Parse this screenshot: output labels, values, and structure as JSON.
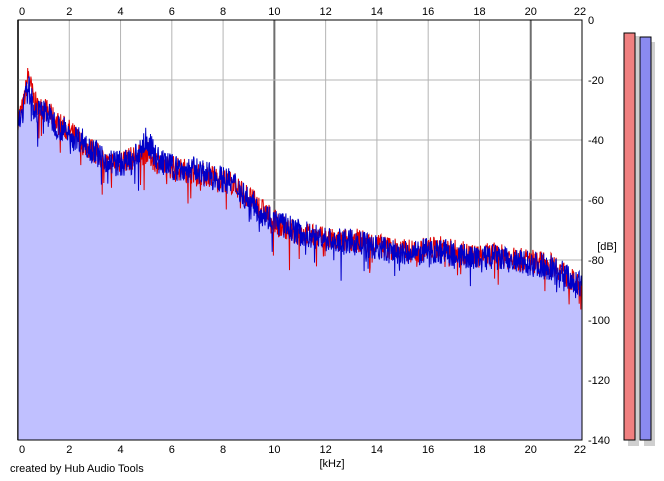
{
  "footer": {
    "credit": "created by Hub Audio Tools"
  },
  "colors": {
    "left_channel": "#e00000",
    "right_channel": "#0000c8",
    "area_fill": "#c0c0ff",
    "grid": "#b4b4b4",
    "grid_major": "#6e6e6e",
    "meter_left": "#f08080",
    "meter_right": "#8a8af0"
  },
  "chart_data": {
    "type": "line",
    "title": "",
    "xlabel": "[kHz]",
    "ylabel": "[dB]",
    "xlim": [
      0,
      22
    ],
    "ylim": [
      -140,
      0
    ],
    "x_ticks": [
      0,
      2,
      4,
      6,
      8,
      10,
      12,
      14,
      16,
      18,
      20,
      22
    ],
    "x_tick_labels": [
      "0",
      "2",
      "4",
      "6",
      "8",
      "10",
      "12",
      "14",
      "16",
      "18",
      "20",
      "22"
    ],
    "y_ticks": [
      0,
      -20,
      -40,
      -60,
      -80,
      -100,
      -120,
      -140
    ],
    "y_tick_labels": [
      "0",
      "-20",
      "-40",
      "-60",
      "-80",
      "-100",
      "-120",
      "-140"
    ],
    "major_x_lines": [
      0,
      10,
      20
    ],
    "grid": true,
    "filled_area": true,
    "x": [
      0,
      0.2,
      0.4,
      0.6,
      0.8,
      1,
      1.5,
      2,
      2.5,
      3,
      3.5,
      4,
      4.5,
      5,
      5.5,
      6,
      6.5,
      7,
      7.5,
      8,
      8.5,
      9,
      9.5,
      10,
      10.5,
      11,
      11.5,
      12,
      12.5,
      13,
      13.5,
      14,
      14.5,
      15,
      15.5,
      16,
      16.5,
      17,
      17.5,
      18,
      18.5,
      19,
      19.5,
      20,
      20.5,
      21,
      21.5,
      22
    ],
    "series": [
      {
        "values": [
          -33,
          -29,
          -18,
          -26,
          -30,
          -29,
          -34,
          -37,
          -41,
          -44,
          -48,
          -47,
          -46,
          -44,
          -48,
          -49,
          -50,
          -51,
          -52,
          -53,
          -55,
          -59,
          -63,
          -67,
          -70,
          -71,
          -72,
          -73,
          -74,
          -73,
          -74,
          -75,
          -76,
          -77,
          -77,
          -76,
          -76,
          -77,
          -78,
          -79,
          -78,
          -79,
          -80,
          -80,
          -81,
          -82,
          -86,
          -90
        ]
      },
      {
        "values": [
          -34,
          -30,
          -22,
          -29,
          -31,
          -30,
          -35,
          -38,
          -40,
          -44,
          -47,
          -48,
          -47,
          -40,
          -47,
          -49,
          -50,
          -50,
          -52,
          -53,
          -55,
          -60,
          -64,
          -67,
          -69,
          -71,
          -72,
          -73,
          -74,
          -74,
          -75,
          -76,
          -77,
          -78,
          -78,
          -77,
          -77,
          -78,
          -79,
          -80,
          -79,
          -80,
          -81,
          -81,
          -82,
          -83,
          -86,
          -89
        ]
      }
    ]
  },
  "meters": {
    "left_level": 0.97,
    "right_level": 0.96
  }
}
